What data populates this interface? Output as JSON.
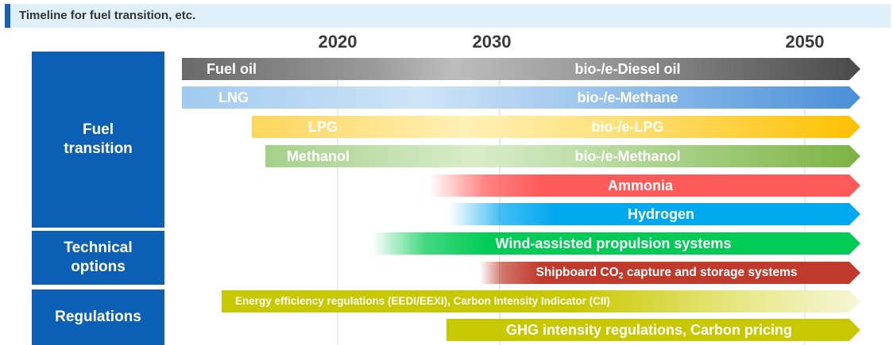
{
  "title": "Timeline for fuel transition, etc.",
  "years": [
    "2020",
    "2030",
    "2050"
  ],
  "categories": {
    "fuel_line1": "Fuel",
    "fuel_line2": "transition",
    "tech_line1": "Technical",
    "tech_line2": "options",
    "regulations": "Regulations"
  },
  "bars": {
    "fuel_oil": {
      "label_left": "Fuel oil",
      "label_right": "bio-/e-Diesel oil",
      "color": "#5a5a5a"
    },
    "lng": {
      "label_left": "LNG",
      "label_right": "bio-/e-Methane",
      "color": "#4a90d9"
    },
    "lpg": {
      "label_left": "LPG",
      "label_right": "bio-/e-LPG",
      "color": "#ffc000"
    },
    "methanol": {
      "label_left": "Methanol",
      "label_right": "bio-/e-Methanol",
      "color": "#7cb342"
    },
    "ammonia": {
      "label": "Ammonia",
      "color": "#ff5a5a"
    },
    "hydrogen": {
      "label": "Hydrogen",
      "color": "#00a8f0"
    },
    "wind": {
      "label": "Wind-assisted propulsion systems",
      "color": "#00cc55"
    },
    "co2": {
      "label_before": "Shipboard CO",
      "label_sub": "2",
      "label_after": " capture and storage systems",
      "color": "#c0392b"
    },
    "energy_efficiency": {
      "label": "Energy efficiency regulations (EEDI/EEXI), Carbon Intensity Indicator (CII)",
      "color": "#c8c800"
    },
    "ghg": {
      "label": "GHG intensity regulations, Carbon pricing",
      "color": "#c8c800"
    }
  }
}
